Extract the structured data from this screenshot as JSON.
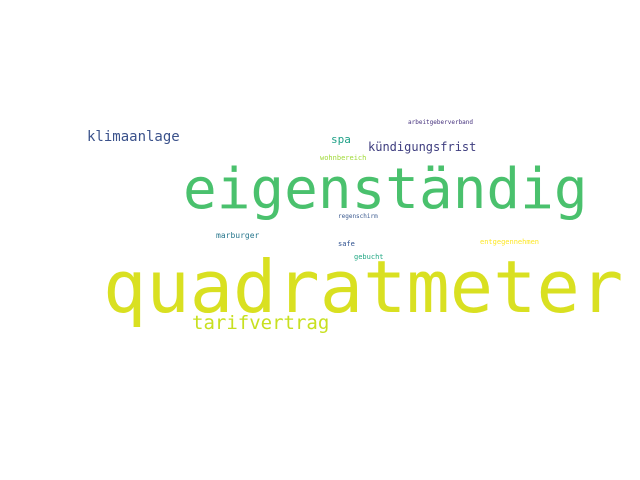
{
  "word_cloud": {
    "words": [
      {
        "id": "quadratmeter",
        "text": "quadratmeter",
        "color": "#d9e021"
      },
      {
        "id": "eigenstandig",
        "text": "eigenständig",
        "color": "#4ac16d"
      },
      {
        "id": "tarifvertrag",
        "text": "tarifvertrag",
        "color": "#c8e020"
      },
      {
        "id": "klimaanlage",
        "text": "klimaanlage",
        "color": "#3b528b"
      },
      {
        "id": "kundigungsfrist",
        "text": "kündigungsfrist",
        "color": "#3e3d7f"
      },
      {
        "id": "spa",
        "text": "spa",
        "color": "#1fa187"
      },
      {
        "id": "arbeitgeberverband",
        "text": "arbeitgeberverband",
        "color": "#46327e"
      },
      {
        "id": "wohnbereich",
        "text": "wohnbereich",
        "color": "#a0da39"
      },
      {
        "id": "regenschirm",
        "text": "regenschirm",
        "color": "#3b5a8f"
      },
      {
        "id": "marburger",
        "text": "marburger",
        "color": "#2a788e"
      },
      {
        "id": "safe",
        "text": "safe",
        "color": "#2c4f8e"
      },
      {
        "id": "gebucht",
        "text": "gebucht",
        "color": "#22a884"
      },
      {
        "id": "entgegennehmen",
        "text": "entgegennehmen",
        "color": "#fde725"
      }
    ]
  }
}
